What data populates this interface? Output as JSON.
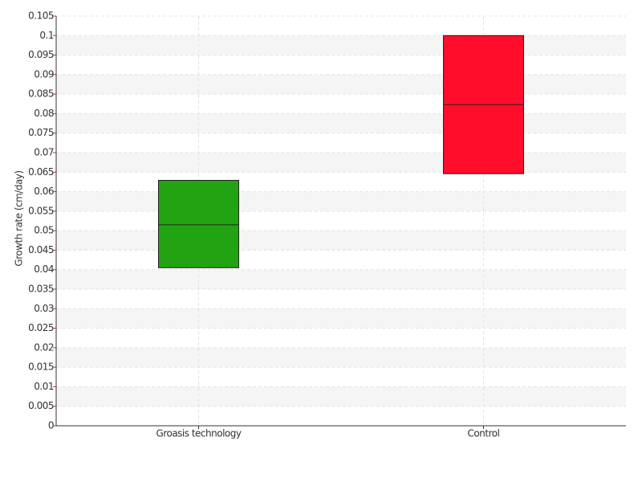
{
  "chart_data": {
    "type": "box",
    "y_label": "Growth rate (cm/day)",
    "categories": [
      "Groasis technology",
      "Control"
    ],
    "low": [
      0.0405,
      0.0646
    ],
    "median": [
      0.0515,
      0.0823
    ],
    "high": [
      0.0629,
      0.1
    ],
    "colors": [
      "#22a412",
      "#ff0d2a"
    ],
    "ylim": [
      0,
      0.105
    ],
    "yticks": [
      0,
      0.005,
      0.01,
      0.015,
      0.02,
      0.025,
      0.03,
      0.035,
      0.04,
      0.045,
      0.05,
      0.055,
      0.06,
      0.065,
      0.07,
      0.075,
      0.08,
      0.085,
      0.09,
      0.095,
      0.1,
      0.105
    ],
    "grid": true
  }
}
